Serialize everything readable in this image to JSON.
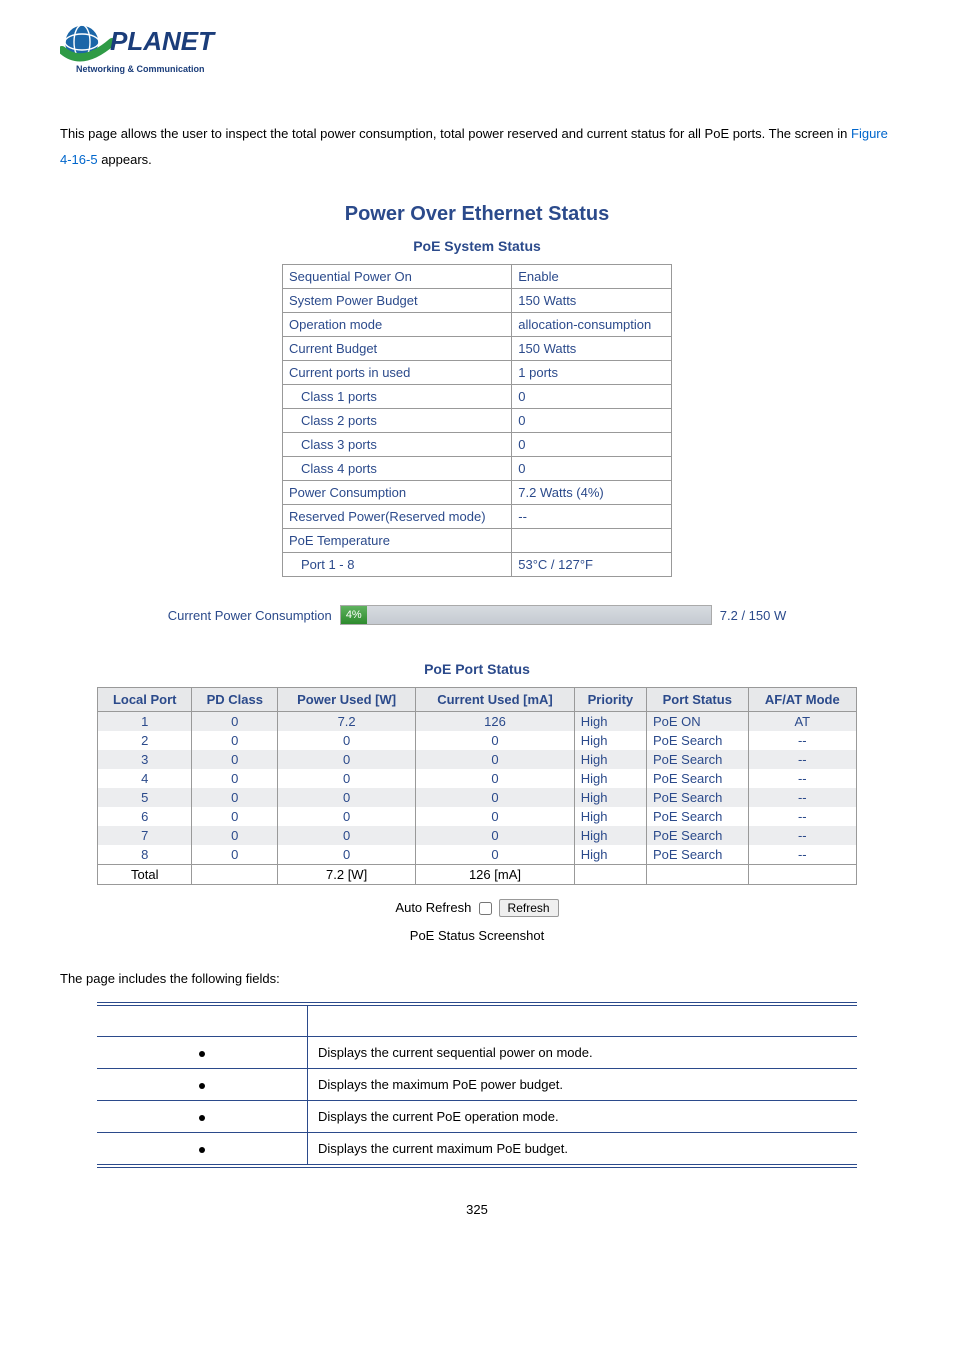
{
  "logo": {
    "brand_top": "PLANET",
    "brand_sub": "Networking & Communication",
    "globe_color": "#1b66a8",
    "ring_color": "#2f9b46",
    "text_color": "#1b3d7a"
  },
  "intro": {
    "line": "This page allows the user to inspect the total power consumption, total power reserved and current status for all PoE ports. The screen in ",
    "figure_ref": "Figure 4-16-5",
    "tail": " appears."
  },
  "main_title": "Power Over Ethernet Status",
  "system_status": {
    "title": "PoE System Status",
    "rows": [
      {
        "label": "Sequential Power On",
        "value": "Enable",
        "indent": false
      },
      {
        "label": "System Power Budget",
        "value": "150 Watts",
        "indent": false
      },
      {
        "label": "Operation mode",
        "value": "allocation-consumption",
        "indent": false
      },
      {
        "label": "Current Budget",
        "value": "150 Watts",
        "indent": false
      },
      {
        "label": "Current ports in used",
        "value": "1 ports",
        "indent": false
      },
      {
        "label": "Class 1 ports",
        "value": "0",
        "indent": true
      },
      {
        "label": "Class 2 ports",
        "value": "0",
        "indent": true
      },
      {
        "label": "Class 3 ports",
        "value": "0",
        "indent": true
      },
      {
        "label": "Class 4 ports",
        "value": "0",
        "indent": true
      },
      {
        "label": "Power Consumption",
        "value": "7.2 Watts (4%)",
        "indent": false
      },
      {
        "label": "Reserved Power(Reserved mode)",
        "value": "--",
        "indent": false
      },
      {
        "label": "PoE Temperature",
        "value": "",
        "indent": false
      },
      {
        "label": "Port 1 - 8",
        "value": "53°C / 127°F",
        "indent": true
      }
    ]
  },
  "consumption": {
    "label": "Current Power Consumption",
    "percent_text": "4%",
    "percent_width": 26,
    "value_text": "7.2 / 150 W"
  },
  "port_status": {
    "title": "PoE Port Status",
    "headers": [
      "Local Port",
      "PD Class",
      "Power Used [W]",
      "Current Used [mA]",
      "Priority",
      "Port Status",
      "AF/AT Mode"
    ],
    "rows": [
      {
        "port": "1",
        "pd": "0",
        "pw": "7.2",
        "cu": "126",
        "pr": "High",
        "ps": "PoE ON",
        "mode": "AT",
        "alt": true
      },
      {
        "port": "2",
        "pd": "0",
        "pw": "0",
        "cu": "0",
        "pr": "High",
        "ps": "PoE Search",
        "mode": "--",
        "alt": false
      },
      {
        "port": "3",
        "pd": "0",
        "pw": "0",
        "cu": "0",
        "pr": "High",
        "ps": "PoE Search",
        "mode": "--",
        "alt": true
      },
      {
        "port": "4",
        "pd": "0",
        "pw": "0",
        "cu": "0",
        "pr": "High",
        "ps": "PoE Search",
        "mode": "--",
        "alt": false
      },
      {
        "port": "5",
        "pd": "0",
        "pw": "0",
        "cu": "0",
        "pr": "High",
        "ps": "PoE Search",
        "mode": "--",
        "alt": true
      },
      {
        "port": "6",
        "pd": "0",
        "pw": "0",
        "cu": "0",
        "pr": "High",
        "ps": "PoE Search",
        "mode": "--",
        "alt": false
      },
      {
        "port": "7",
        "pd": "0",
        "pw": "0",
        "cu": "0",
        "pr": "High",
        "ps": "PoE Search",
        "mode": "--",
        "alt": true
      },
      {
        "port": "8",
        "pd": "0",
        "pw": "0",
        "cu": "0",
        "pr": "High",
        "ps": "PoE Search",
        "mode": "--",
        "alt": false
      }
    ],
    "total": {
      "label": "Total",
      "pw": "7.2 [W]",
      "cu": "126 [mA]"
    }
  },
  "refresh": {
    "auto_label": "Auto Refresh",
    "button": "Refresh"
  },
  "caption": "PoE Status Screenshot",
  "fields_intro": "The page includes the following fields:",
  "fields_table": {
    "rows": [
      {
        "desc": "Displays the current sequential power on mode."
      },
      {
        "desc": "Displays the maximum PoE power budget."
      },
      {
        "desc": "Displays the current PoE operation mode."
      },
      {
        "desc": "Displays the current maximum PoE budget."
      }
    ]
  },
  "page_number": "325"
}
